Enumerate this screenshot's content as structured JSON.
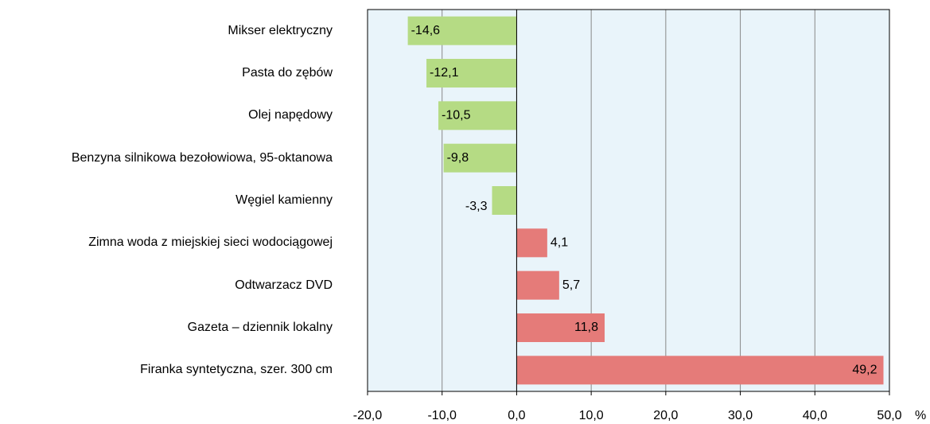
{
  "chart_data": {
    "type": "barh",
    "categories": [
      "Mikser elektryczny",
      "Pasta do zębów",
      "Olej napędowy",
      "Benzyna silnikowa bezołowiowa, 95-oktanowa",
      "Węgiel kamienny",
      "Zimna woda z miejskiej sieci wodociągowej",
      "Odtwarzacz DVD",
      "Gazeta – dziennik lokalny",
      "Firanka syntetyczna, szer. 300 cm"
    ],
    "values": [
      -14.6,
      -12.1,
      -10.5,
      -9.8,
      -3.3,
      4.1,
      5.7,
      11.8,
      49.2
    ],
    "value_labels": [
      "-14,6",
      "-12,1",
      "-10,5",
      "-9,8",
      "-3,3",
      "4,1",
      "5,7",
      "11,8",
      "49,2"
    ],
    "colors": [
      "#b5db84",
      "#b5db84",
      "#b5db84",
      "#b5db84",
      "#b5db84",
      "#e57b79",
      "#e57b79",
      "#e57b79",
      "#e57b79"
    ],
    "xlim": [
      -20,
      50
    ],
    "xticks": [
      {
        "value": -20,
        "label": "-20,0"
      },
      {
        "value": -10,
        "label": "-10,0"
      },
      {
        "value": 0,
        "label": "0,0"
      },
      {
        "value": 10,
        "label": "10,0"
      },
      {
        "value": 20,
        "label": "20,0"
      },
      {
        "value": 30,
        "label": "30,0"
      },
      {
        "value": 40,
        "label": "40,0"
      },
      {
        "value": 50,
        "label": "50,0"
      }
    ],
    "x_label": "%",
    "grid": true,
    "background": "#e9f4fa"
  }
}
